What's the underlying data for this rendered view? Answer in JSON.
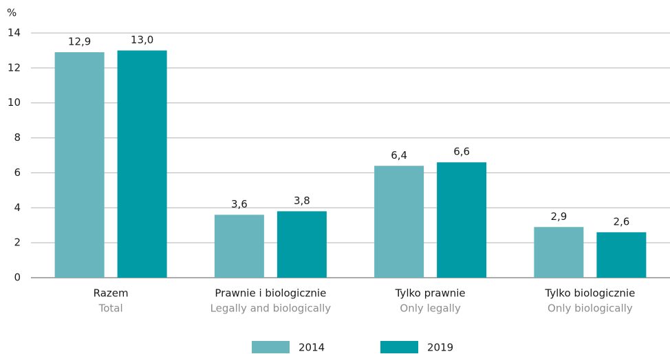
{
  "chart_data": {
    "type": "bar",
    "y_label": "%",
    "categories": [
      {
        "name": "Razem",
        "translation": "Total"
      },
      {
        "name": "Prawnie i biologicznie",
        "translation": "Legally and biologically"
      },
      {
        "name": "Tylko prawnie",
        "translation": "Only legally"
      },
      {
        "name": "Tylko biologicznie",
        "translation": "Only biologically"
      }
    ],
    "series": [
      {
        "name": "2014",
        "color": "#68b5be",
        "values": [
          12.9,
          3.6,
          6.4,
          2.9
        ],
        "value_labels": [
          "12,9",
          "3,6",
          "6,4",
          "2,9"
        ]
      },
      {
        "name": "2019",
        "color": "#009ba5",
        "values": [
          13.0,
          3.8,
          6.6,
          2.6
        ],
        "value_labels": [
          "13,0",
          "3,8",
          "6,6",
          "2,6"
        ]
      }
    ],
    "ylim": [
      0,
      14
    ],
    "yticks": [
      0,
      2,
      4,
      6,
      8,
      10,
      12,
      14
    ],
    "grid": true,
    "legend": "bottom"
  }
}
